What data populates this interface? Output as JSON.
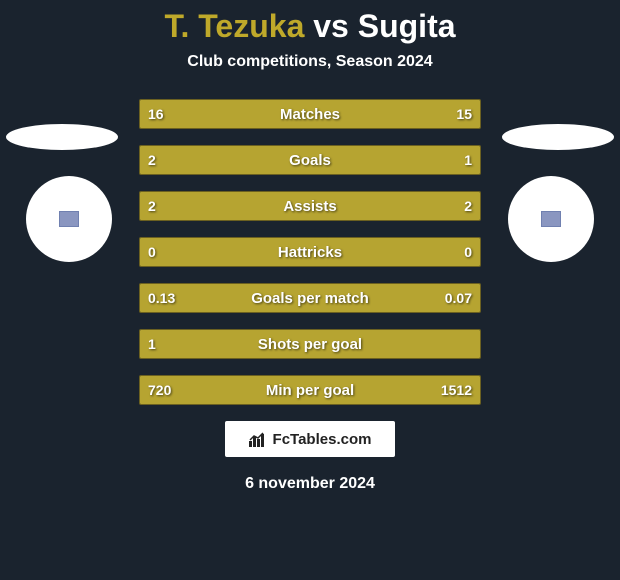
{
  "title": {
    "player1": "T. Tezuka",
    "vs": "vs",
    "player2": "Sugita"
  },
  "subtitle": "Club competitions, Season 2024",
  "colors": {
    "background": "#1a232e",
    "bar_fill": "#b6a431",
    "bar_border": "#6b6020",
    "player1_title": "#bfa92a",
    "text": "#ffffff"
  },
  "bars": [
    {
      "label": "Matches",
      "left_val": "16",
      "right_val": "15",
      "left_pct": 51.6,
      "right_pct": 48.4
    },
    {
      "label": "Goals",
      "left_val": "2",
      "right_val": "1",
      "left_pct": 66.7,
      "right_pct": 33.3
    },
    {
      "label": "Assists",
      "left_val": "2",
      "right_val": "2",
      "left_pct": 50.0,
      "right_pct": 50.0
    },
    {
      "label": "Hattricks",
      "left_val": "0",
      "right_val": "0",
      "left_pct": 50.0,
      "right_pct": 50.0
    },
    {
      "label": "Goals per match",
      "left_val": "0.13",
      "right_val": "0.07",
      "left_pct": 65.0,
      "right_pct": 35.0
    },
    {
      "label": "Shots per goal",
      "left_val": "1",
      "right_val": "",
      "left_pct": 100.0,
      "right_pct": 0.0
    },
    {
      "label": "Min per goal",
      "left_val": "720",
      "right_val": "1512",
      "left_pct": 32.3,
      "right_pct": 67.7
    }
  ],
  "branding": "FcTables.com",
  "date": "6 november 2024"
}
